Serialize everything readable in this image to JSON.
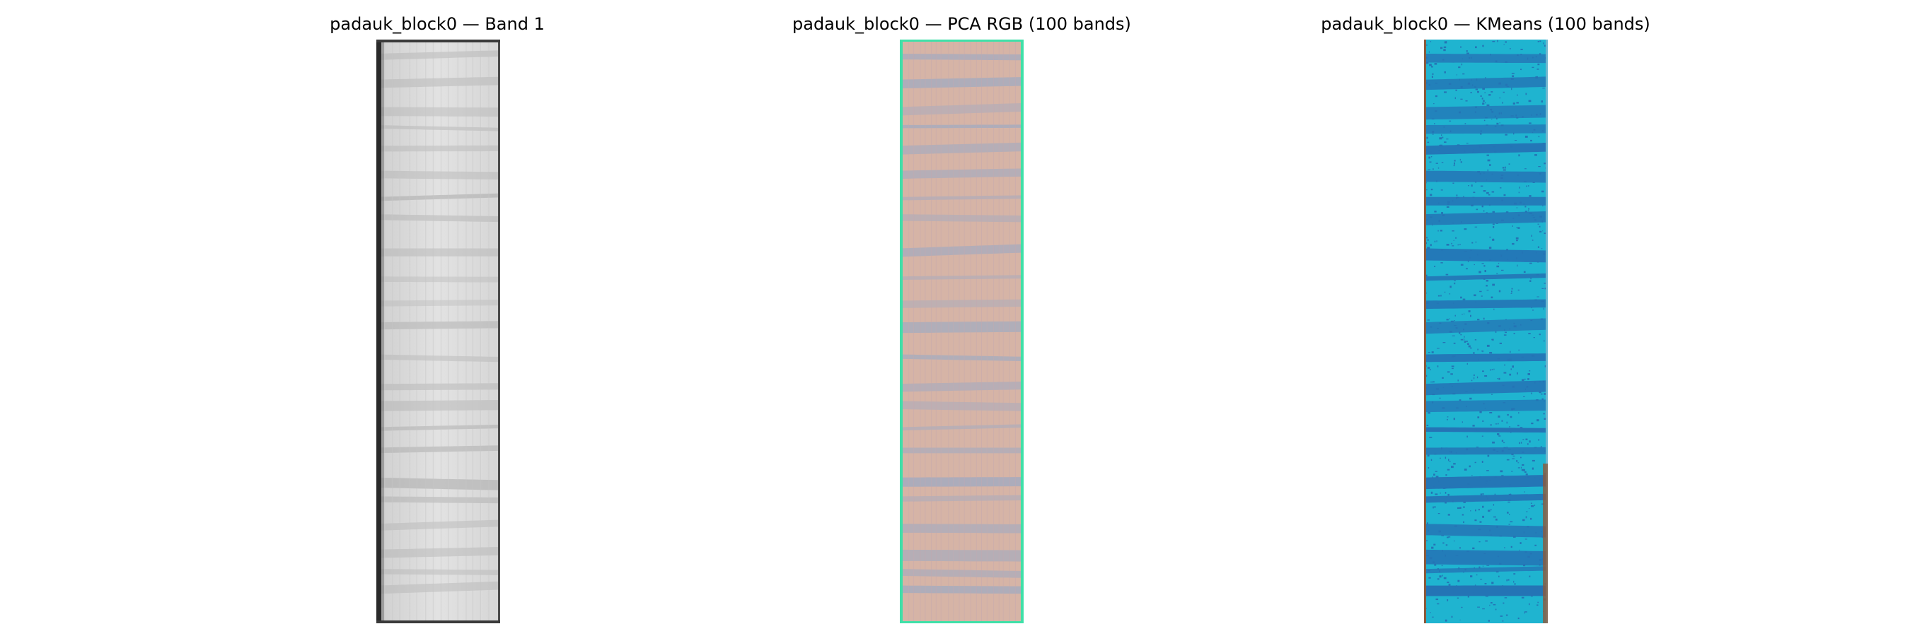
{
  "panels": [
    {
      "title": "padauk_block0 — Band 1",
      "image_kind": "grayscale-band",
      "colors": {
        "base": "#d8d8d8",
        "stripe": "#a8a8a8",
        "edge": "#2a2a2a"
      }
    },
    {
      "title": "padauk_block0 — PCA RGB (100 bands)",
      "image_kind": "pca-rgb",
      "colors": {
        "base": "#d8b2a2",
        "stripe": "#93a8c8",
        "edge": "#3fe0a8"
      }
    },
    {
      "title": "padauk_block0 — KMeans (100 bands)",
      "image_kind": "kmeans-clusters",
      "colors": {
        "base": "#1fb4d0",
        "stripe": "#2474b5",
        "edge": "#8b5a3c"
      }
    }
  ]
}
